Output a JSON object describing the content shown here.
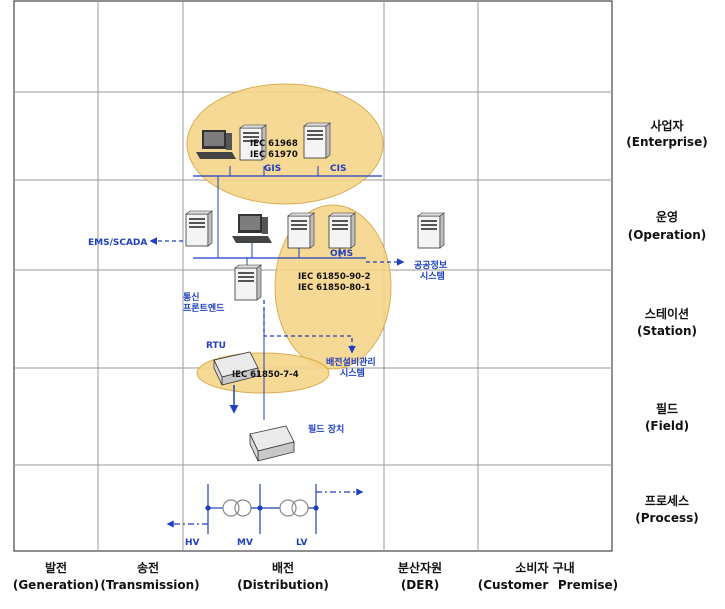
{
  "zones": [
    {
      "ko": "사업자",
      "en": "(Enterprise)"
    },
    {
      "ko": "운영",
      "en": "(Operation)"
    },
    {
      "ko": "스테이션",
      "en": "(Station)"
    },
    {
      "ko": "필드",
      "en": "(Field)"
    },
    {
      "ko": "프로세스",
      "en": "(Process)"
    }
  ],
  "domains": [
    {
      "ko": "발전",
      "en": "(Generation)"
    },
    {
      "ko": "송전",
      "en": "(Transmission)"
    },
    {
      "ko": "배전",
      "en": "(Distribution)"
    },
    {
      "ko": "분산자원",
      "en": "(DER)"
    },
    {
      "ko": "소비자 구내",
      "en_left": "(Customer",
      "en_right": "Premise)"
    }
  ],
  "systems": {
    "gis": "GIS",
    "cis": "CIS",
    "ems_scada": "EMS/SCADA",
    "oms": "OMS",
    "public_info_1": "공공정보",
    "public_info_2": "시스템",
    "comm_fe_1": "통신",
    "comm_fe_2": "프론트엔드",
    "rtu": "RTU",
    "asset_mgmt_1": "배전설비관리",
    "asset_mgmt_2": "시스템",
    "field_device": "필드 장치"
  },
  "standards": {
    "iec61968": "IEC 61968",
    "iec61970": "IEC 61970",
    "iec61850_90_2": "IEC 61850-90-2",
    "iec61850_80_1": "IEC 61850-80-1",
    "iec61850_7_4": "IEC 61850-7-4"
  },
  "voltage": {
    "hv": "HV",
    "mv": "MV",
    "lv": "LV"
  },
  "colors": {
    "ellipse_fill": "#f6d58a",
    "ellipse_stroke": "#d4a640",
    "link_blue": "#1f3fbf",
    "grid": "#9a9a9a"
  }
}
